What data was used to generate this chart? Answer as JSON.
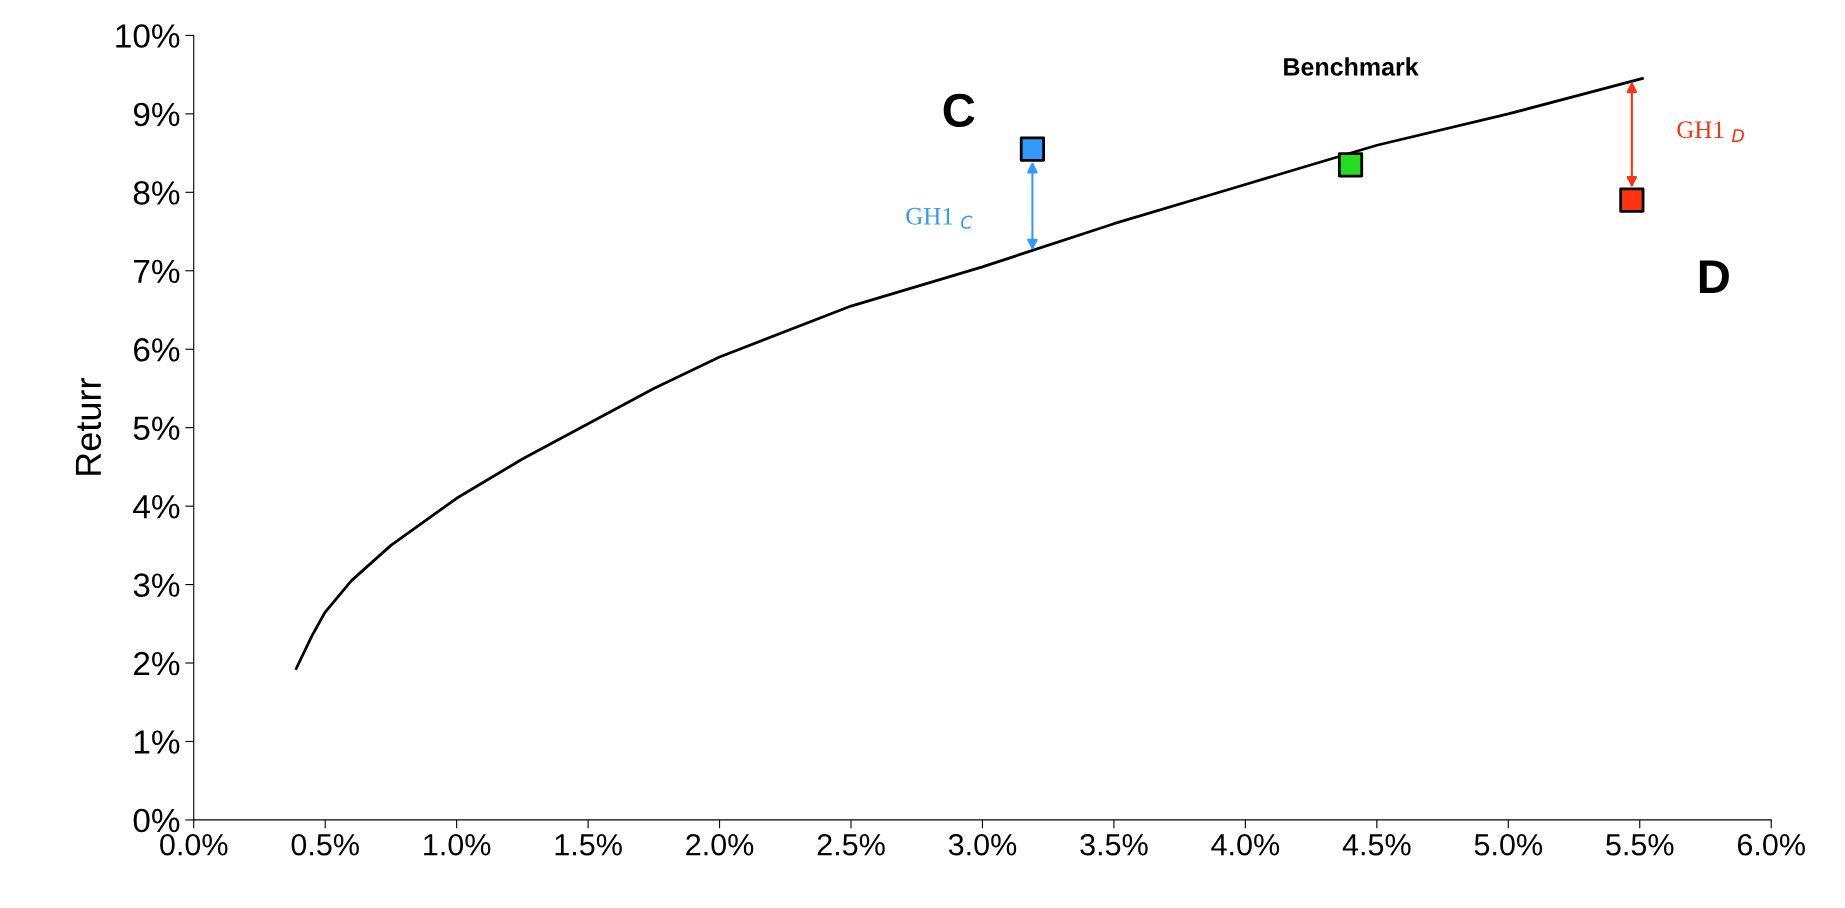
{
  "chart_data": {
    "type": "line",
    "ylabel": "Returr",
    "series": [
      {
        "color": "#000000",
        "x": [
          0.39,
          0.45,
          0.5,
          0.6,
          0.75,
          1.0,
          1.25,
          1.5,
          1.75,
          2.0,
          2.5,
          3.0,
          3.5,
          4.0,
          4.5,
          5.0,
          5.51
        ],
        "values": [
          1.93,
          2.35,
          2.65,
          3.05,
          3.5,
          4.1,
          4.6,
          5.05,
          5.5,
          5.9,
          6.55,
          7.05,
          7.6,
          8.1,
          8.6,
          9.0,
          9.45
        ]
      },
      {
        "type": "scatter",
        "marker": "square",
        "x": [
          3.19,
          4.4,
          5.47
        ],
        "values": [
          8.55,
          8.35,
          7.9
        ],
        "colors": [
          "#3399ff",
          "#22dd22",
          "#ff3311"
        ]
      }
    ],
    "annotations": [
      "C",
      "Benchmark",
      "D",
      "GH1 $_{C}$",
      "GH1 $_{D}$"
    ],
    "xlim": [
      0,
      6
    ],
    "ylim": [
      0,
      10
    ],
    "xticks": [
      {
        "value": 0,
        "label": "0.0%"
      },
      {
        "value": 0.5,
        "label": "0.5%"
      },
      {
        "value": 1,
        "label": "1.0%"
      },
      {
        "value": 1.5,
        "label": "1.5%"
      },
      {
        "value": 2,
        "label": "2.0%"
      },
      {
        "value": 2.5,
        "label": "2.5%"
      },
      {
        "value": 3,
        "label": "3.0%"
      },
      {
        "value": 3.5,
        "label": "3.5%"
      },
      {
        "value": 4,
        "label": "4.0%"
      },
      {
        "value": 4.5,
        "label": "4.5%"
      },
      {
        "value": 5,
        "label": "5.0%"
      },
      {
        "value": 5.5,
        "label": "5.5%"
      },
      {
        "value": 6,
        "label": "6.0%"
      }
    ],
    "yticks": [
      {
        "value": 0,
        "label": "0%"
      },
      {
        "value": 1,
        "label": "1%"
      },
      {
        "value": 2,
        "label": "2%"
      },
      {
        "value": 3,
        "label": "3%"
      },
      {
        "value": 4,
        "label": "4%"
      },
      {
        "value": 5,
        "label": "5%"
      },
      {
        "value": 6,
        "label": "6%"
      },
      {
        "value": 7,
        "label": "7%"
      },
      {
        "value": 8,
        "label": "8%"
      },
      {
        "value": 9,
        "label": "9%"
      },
      {
        "value": 10,
        "label": "10%"
      }
    ],
    "grid": false
  }
}
